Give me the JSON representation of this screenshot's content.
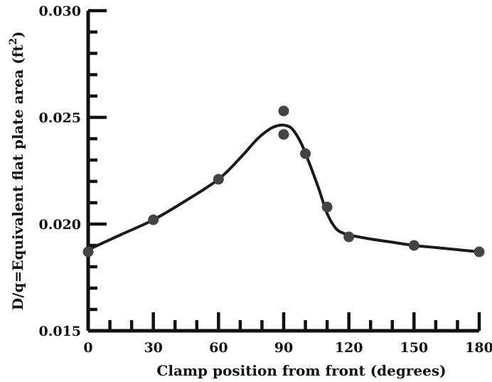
{
  "chart_data": {
    "type": "scatter",
    "title": "",
    "xlabel": "Clamp position from front (degrees)",
    "ylabel_main": "D/q=Equivalent flat plate area (ft",
    "ylabel_sup": "2",
    "ylabel_close": ")",
    "xlim": [
      0,
      180
    ],
    "ylim": [
      0.015,
      0.03
    ],
    "x_ticks": [
      0,
      30,
      60,
      90,
      120,
      150,
      180
    ],
    "x_tick_labels": [
      "0",
      "30",
      "60",
      "90",
      "120",
      "150",
      "180"
    ],
    "y_ticks": [
      0.015,
      0.02,
      0.025,
      0.03
    ],
    "y_tick_labels": [
      "0.015",
      "0.020",
      "0.025",
      "0.030"
    ],
    "x_minor_step": 10,
    "y_minor_step": 0.001,
    "grid": false,
    "series": [
      {
        "type": "scatter",
        "x": [
          0,
          30,
          60,
          90,
          90,
          100,
          110,
          120,
          150,
          180
        ],
        "y": [
          0.0187,
          0.0202,
          0.0221,
          0.0253,
          0.0242,
          0.0233,
          0.0208,
          0.0194,
          0.019,
          0.0187
        ],
        "color": "#444444"
      },
      {
        "type": "line",
        "x": [
          0,
          15,
          30,
          45,
          60,
          70,
          78,
          84,
          88,
          91,
          94,
          98,
          102,
          106,
          110,
          114,
          118,
          122,
          130,
          140,
          150,
          160,
          170,
          180
        ],
        "y": [
          0.0188,
          0.0195,
          0.0202,
          0.0211,
          0.0221,
          0.0231,
          0.024,
          0.02448,
          0.02463,
          0.02462,
          0.02445,
          0.0238,
          0.0228,
          0.0217,
          0.0205,
          0.0198,
          0.01955,
          0.01945,
          0.0193,
          0.01915,
          0.019,
          0.0189,
          0.0188,
          0.0187
        ],
        "color": "#1a1a1a"
      }
    ]
  }
}
